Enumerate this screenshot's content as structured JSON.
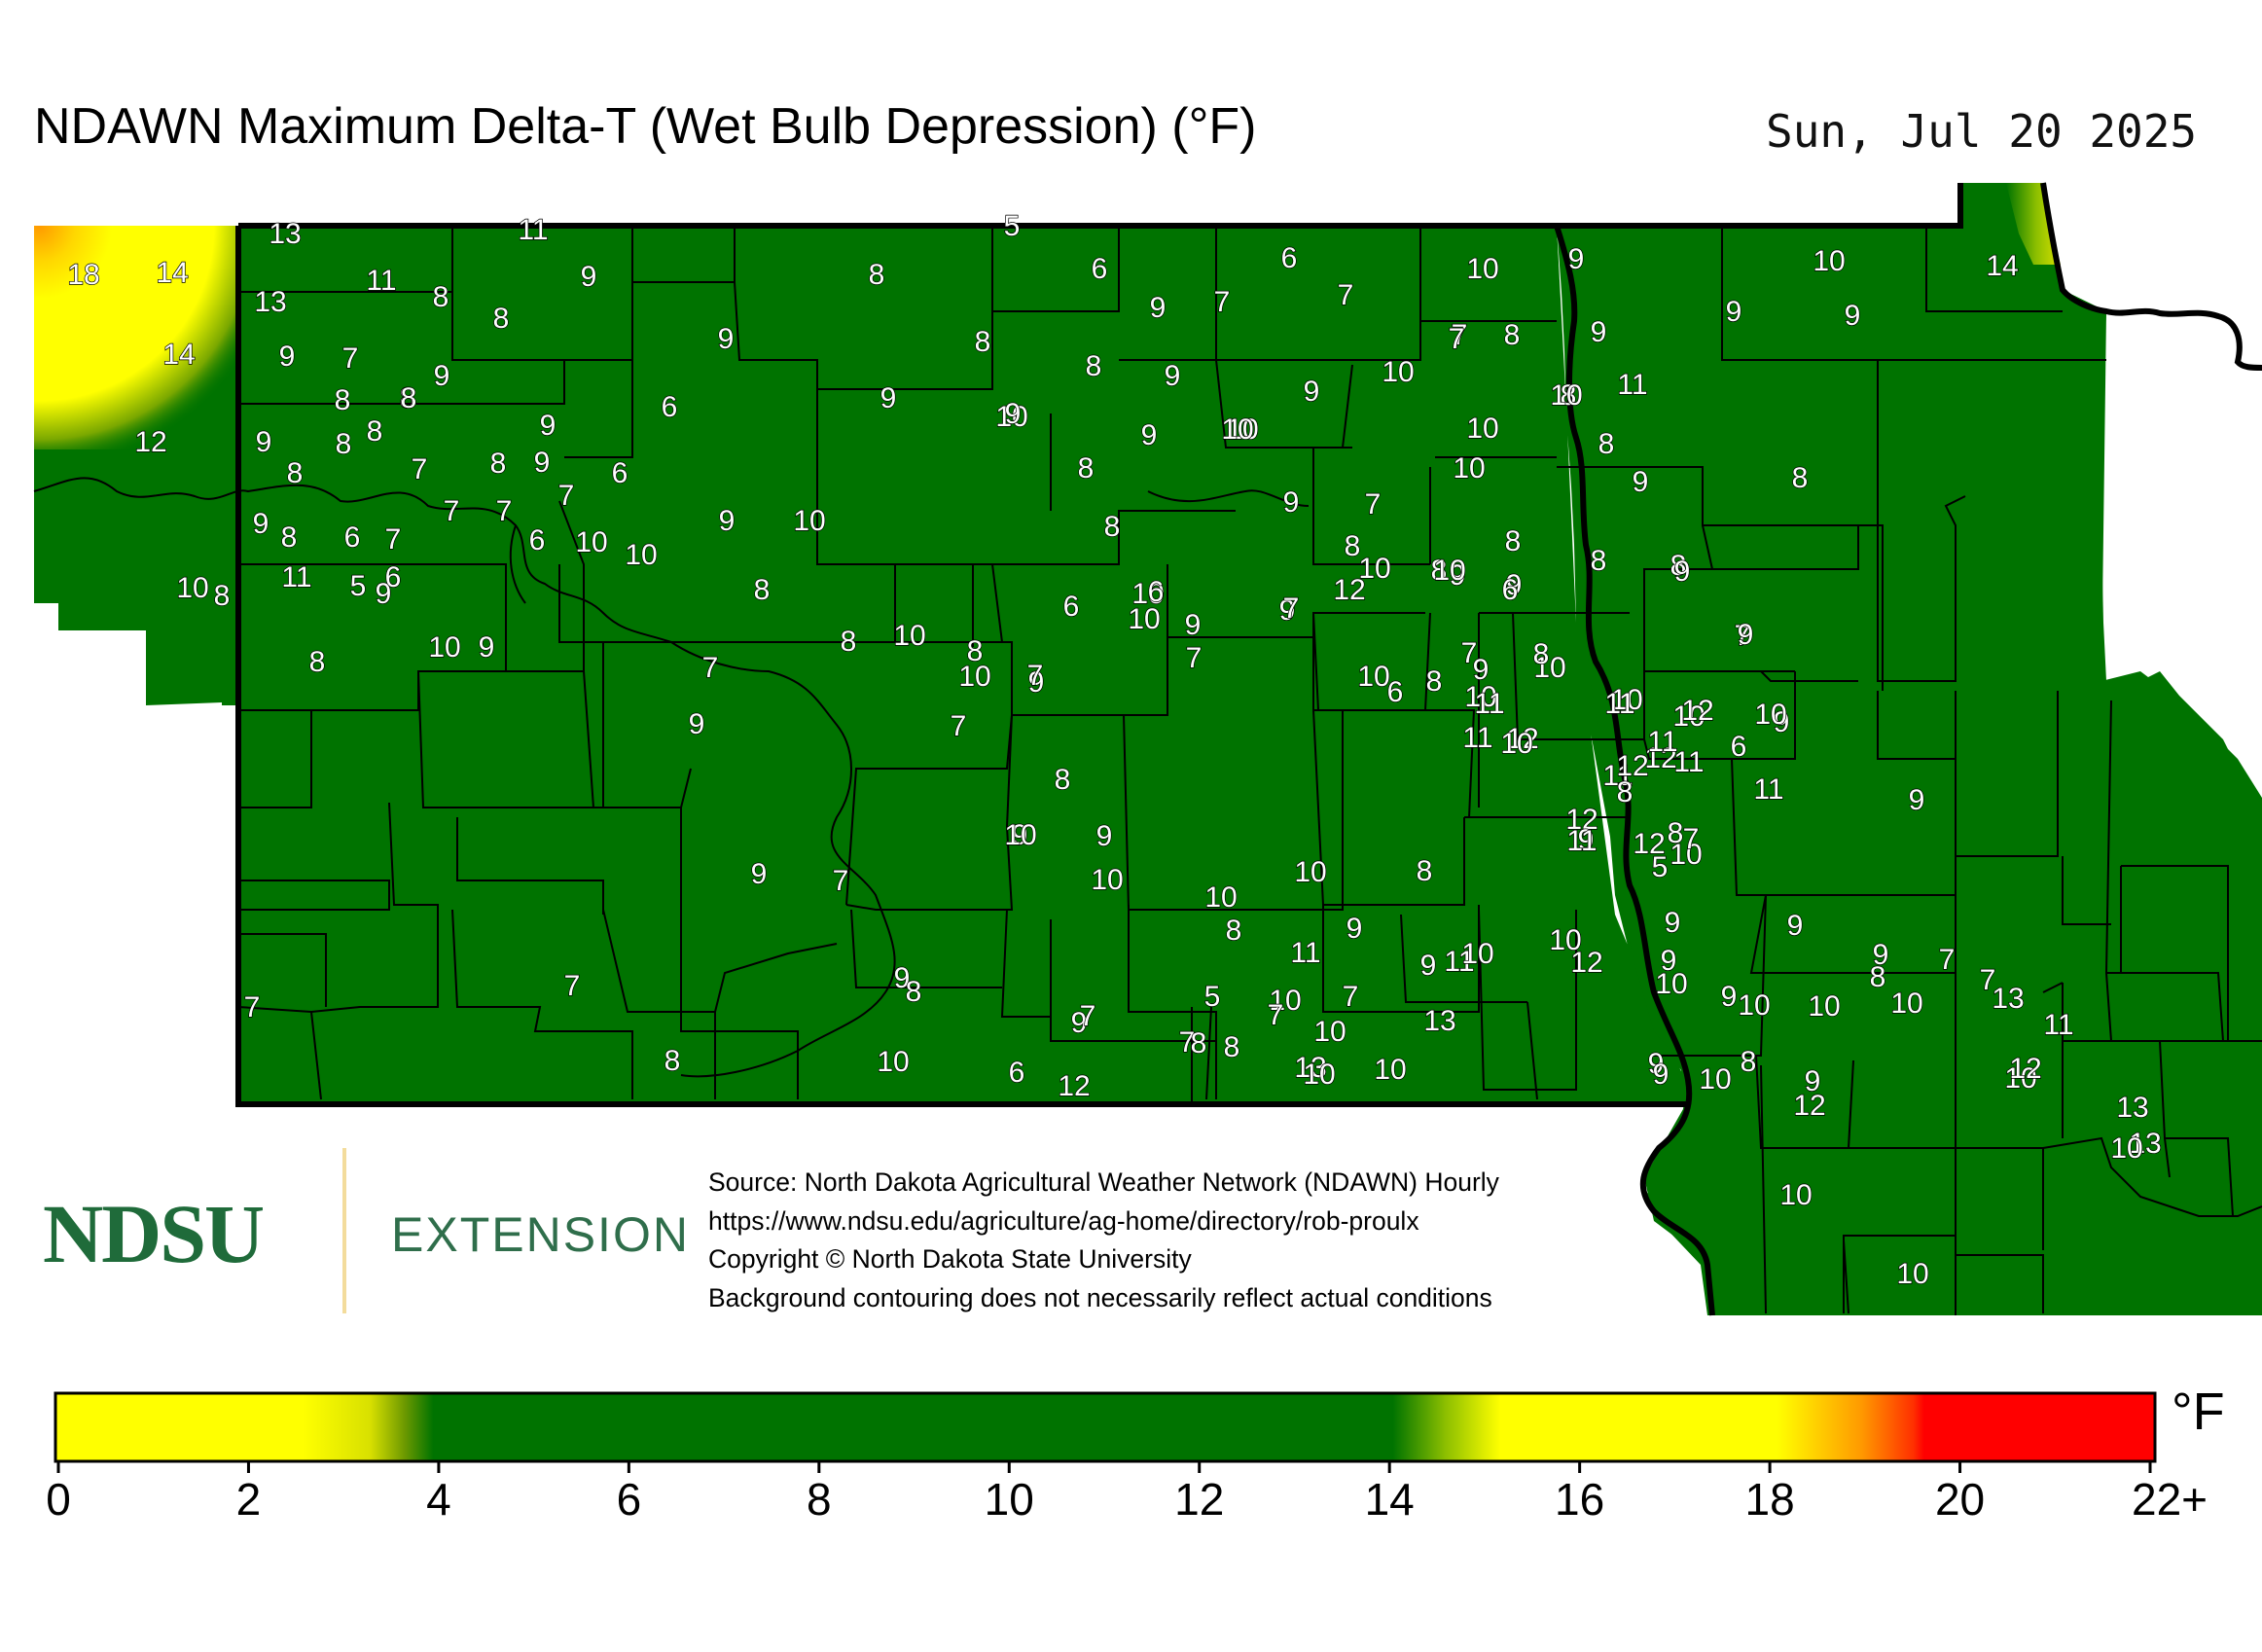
{
  "header": {
    "title": "NDAWN Maximum Delta-T (Wet Bulb Depression) (°F)",
    "date": "Sun, Jul 20 2025"
  },
  "logo": {
    "ndsu": "NDSU",
    "extension": "EXTENSION"
  },
  "source_lines": [
    "Source: North Dakota Agricultural Weather Network (NDAWN) Hourly",
    "https://www.ndsu.edu/agriculture/ag-home/directory/rob-proulx",
    "Copyright © North Dakota State University",
    "Background contouring does not necessarily reflect actual conditions"
  ],
  "colors": {
    "low": "#ffff00",
    "ok": "#007300",
    "high_yellow": "#ffff00",
    "orange": "#ff8800",
    "red": "#ff0000",
    "border": "#000000"
  },
  "legend": {
    "unit": "°F",
    "ticks": [
      "0",
      "2",
      "4",
      "6",
      "8",
      "10",
      "12",
      "14",
      "16",
      "18",
      "20",
      "22+"
    ],
    "min": 0,
    "max": 22
  },
  "station_values": [
    "13",
    "11",
    "5",
    "18",
    "14",
    "11",
    "9",
    "8",
    "6",
    "6",
    "10",
    "9",
    "13",
    "8",
    "8",
    "9",
    "7",
    "7",
    "7",
    "10",
    "14",
    "14",
    "9",
    "7",
    "9",
    "8",
    "8",
    "9",
    "10",
    "8",
    "9",
    "9",
    "7",
    "8",
    "9",
    "10",
    "11",
    "9",
    "8",
    "9",
    "6",
    "9",
    "10",
    "12",
    "8",
    "8",
    "9",
    "10",
    "10",
    "8",
    "9",
    "9",
    "8",
    "8",
    "9",
    "8",
    "8",
    "9",
    "7",
    "6",
    "8",
    "10",
    "8",
    "9",
    "10",
    "9",
    "7",
    "7",
    "7",
    "7",
    "9",
    "8",
    "6",
    "7",
    "6",
    "10",
    "10",
    "9",
    "10",
    "8",
    "8",
    "8",
    "10",
    "8",
    "12",
    "9",
    "9",
    "8",
    "8",
    "11",
    "9",
    "8",
    "10",
    "9",
    "10",
    "8",
    "9",
    "6",
    "5",
    "10",
    "10",
    "9",
    "6",
    "6",
    "8",
    "8",
    "7",
    "9",
    "10",
    "8",
    "10",
    "7",
    "7",
    "9",
    "7",
    "10",
    "10",
    "8",
    "10",
    "9",
    "7",
    "6",
    "7",
    "10",
    "6",
    "9",
    "7",
    "9",
    "8",
    "10",
    "9",
    "10",
    "11",
    "11",
    "12",
    "11",
    "12",
    "12",
    "10",
    "11",
    "10",
    "11",
    "11",
    "11",
    "9",
    "12",
    "9",
    "10",
    "12",
    "11",
    "12",
    "8",
    "5",
    "9",
    "7",
    "8",
    "6",
    "9",
    "7",
    "8",
    "9",
    "10",
    "10",
    "10",
    "9",
    "8",
    "10",
    "8",
    "11",
    "9",
    "9",
    "11",
    "10",
    "10",
    "10",
    "12",
    "9",
    "9",
    "9",
    "8",
    "7",
    "7",
    "10",
    "10",
    "9",
    "9",
    "13",
    "7",
    "5",
    "10",
    "9",
    "8",
    "9",
    "8",
    "7",
    "7",
    "10",
    "7",
    "8",
    "13",
    "6",
    "7",
    "7",
    "8",
    "10",
    "12",
    "10",
    "10",
    "9",
    "10",
    "12",
    "8",
    "9",
    "10",
    "10",
    "13",
    "11",
    "12",
    "13",
    "13",
    "10",
    "10",
    "10"
  ]
}
